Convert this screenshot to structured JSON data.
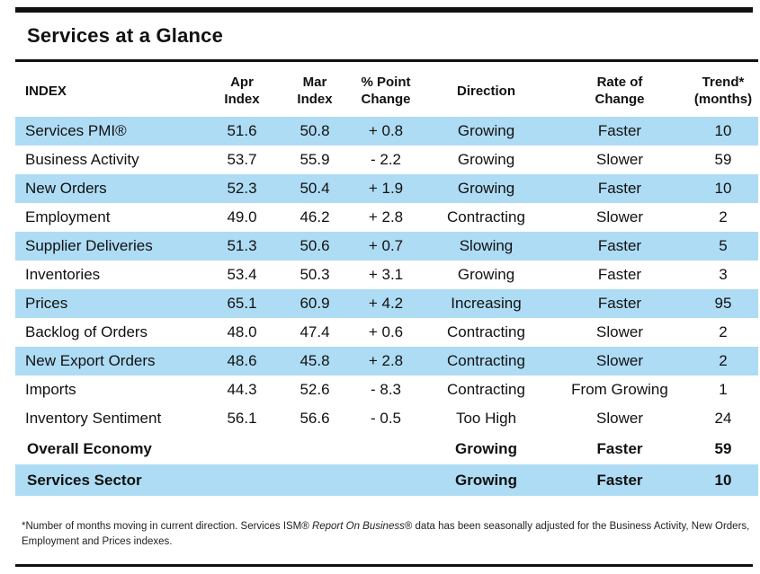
{
  "title": "Services at a Glance",
  "colors": {
    "row_highlight": "#aedcf4",
    "rule": "#111111"
  },
  "headers": {
    "index": "INDEX",
    "apr_line1": "Apr",
    "apr_line2": "Index",
    "mar_line1": "Mar",
    "mar_line2": "Index",
    "change_line1": "% Point",
    "change_line2": "Change",
    "direction": "Direction",
    "rate_line1": "Rate of",
    "rate_line2": "Change",
    "trend_line1": "Trend*",
    "trend_line2": "(months)"
  },
  "rows": [
    {
      "name": "Services PMI®",
      "apr": "51.6",
      "mar": "50.8",
      "change": "+ 0.8",
      "direction": "Growing",
      "rate": "Faster",
      "trend": "10"
    },
    {
      "name": "Business Activity",
      "apr": "53.7",
      "mar": "55.9",
      "change": "- 2.2",
      "direction": "Growing",
      "rate": "Slower",
      "trend": "59"
    },
    {
      "name": "New Orders",
      "apr": "52.3",
      "mar": "50.4",
      "change": "+ 1.9",
      "direction": "Growing",
      "rate": "Faster",
      "trend": "10"
    },
    {
      "name": "Employment",
      "apr": "49.0",
      "mar": "46.2",
      "change": "+ 2.8",
      "direction": "Contracting",
      "rate": "Slower",
      "trend": "2"
    },
    {
      "name": "Supplier Deliveries",
      "apr": "51.3",
      "mar": "50.6",
      "change": "+ 0.7",
      "direction": "Slowing",
      "rate": "Faster",
      "trend": "5"
    },
    {
      "name": "Inventories",
      "apr": "53.4",
      "mar": "50.3",
      "change": "+ 3.1",
      "direction": "Growing",
      "rate": "Faster",
      "trend": "3"
    },
    {
      "name": "Prices",
      "apr": "65.1",
      "mar": "60.9",
      "change": "+ 4.2",
      "direction": "Increasing",
      "rate": "Faster",
      "trend": "95"
    },
    {
      "name": "Backlog of Orders",
      "apr": "48.0",
      "mar": "47.4",
      "change": "+ 0.6",
      "direction": "Contracting",
      "rate": "Slower",
      "trend": "2"
    },
    {
      "name": "New Export Orders",
      "apr": "48.6",
      "mar": "45.8",
      "change": "+ 2.8",
      "direction": "Contracting",
      "rate": "Slower",
      "trend": "2"
    },
    {
      "name": "Imports",
      "apr": "44.3",
      "mar": "52.6",
      "change": "- 8.3",
      "direction": "Contracting",
      "rate": "From Growing",
      "trend": "1"
    },
    {
      "name": "Inventory Sentiment",
      "apr": "56.1",
      "mar": "56.6",
      "change": "- 0.5",
      "direction": "Too High",
      "rate": "Slower",
      "trend": "24"
    }
  ],
  "summary": [
    {
      "name": "Overall Economy",
      "direction": "Growing",
      "rate": "Faster",
      "trend": "59"
    },
    {
      "name": "Services Sector",
      "direction": "Growing",
      "rate": "Faster",
      "trend": "10"
    }
  ],
  "footnote": {
    "part1": "*Number of months moving in current direction. Services ISM® ",
    "italic": "Report On Business",
    "part2": "® data has been seasonally adjusted for the Business Activity, New Orders, Employment and Prices indexes."
  }
}
